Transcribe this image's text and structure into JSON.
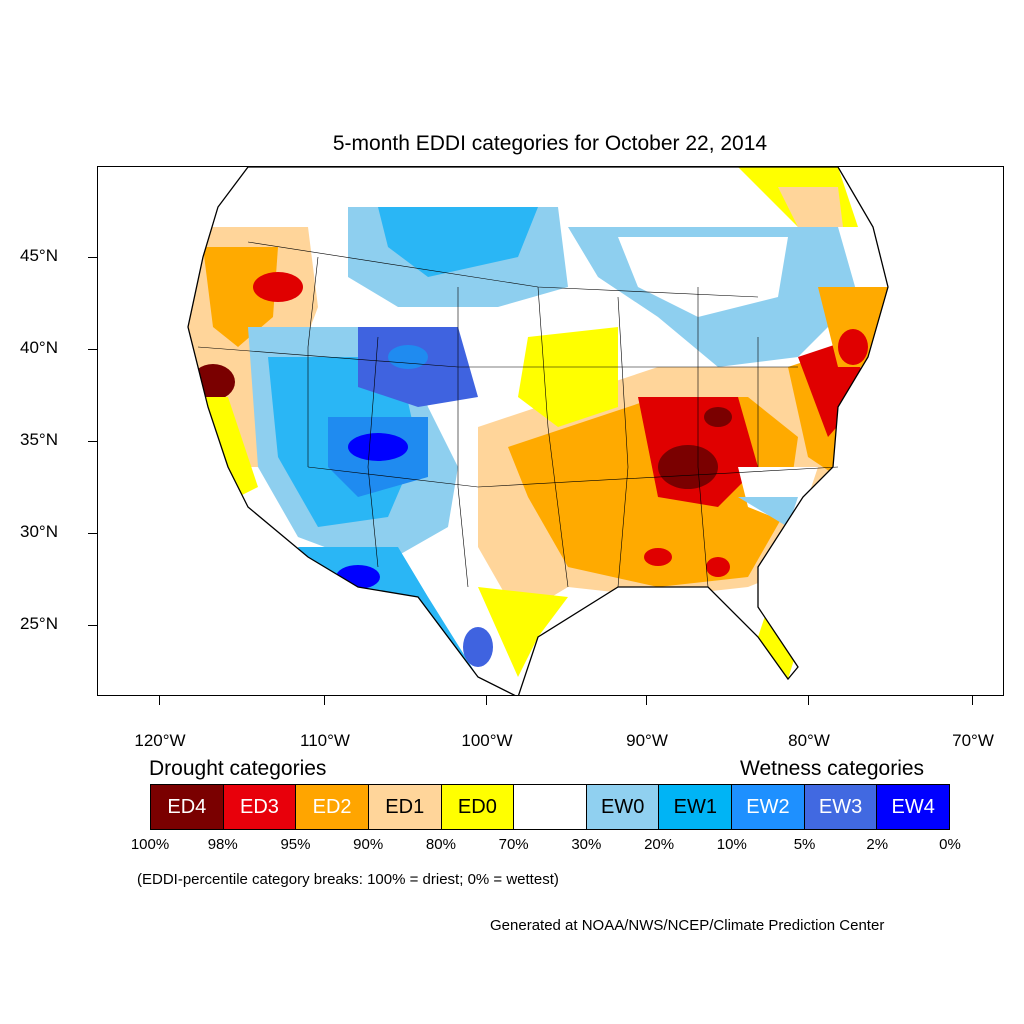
{
  "title": "5-month EDDI categories for October 22, 2014",
  "map": {
    "latitude_labels": [
      "45°N",
      "40°N",
      "35°N",
      "30°N",
      "25°N"
    ],
    "longitude_labels": [
      "120°W",
      "110°W",
      "100°W",
      "90°W",
      "80°W",
      "70°W"
    ],
    "colors": {
      "ED4": "#7a0000",
      "ED3": "#e00000",
      "ED2": "#ffaa00",
      "ED1": "#ffd28c",
      "ED0": "#ffff00",
      "none": "#ffffff",
      "EW0": "#8ecfef",
      "EW1": "#2ab6f5",
      "EW2": "#1f8bf0",
      "EW3": "#3f63e0",
      "EW4": "#0000ff"
    }
  },
  "legend": {
    "drought_heading": "Drought categories",
    "wetness_heading": "Wetness categories",
    "categories": [
      {
        "label": "ED4",
        "color": "#7a0000",
        "text_color": "#ffffff"
      },
      {
        "label": "ED3",
        "color": "#e8000b",
        "text_color": "#ffffff"
      },
      {
        "label": "ED2",
        "color": "#ffa500",
        "text_color": "#ffffff"
      },
      {
        "label": "ED1",
        "color": "#ffd59a",
        "text_color": "#000000"
      },
      {
        "label": "ED0",
        "color": "#ffff00",
        "text_color": "#000000"
      },
      {
        "label": "",
        "color": "#ffffff",
        "text_color": "#000000"
      },
      {
        "label": "EW0",
        "color": "#90d0f0",
        "text_color": "#000000"
      },
      {
        "label": "EW1",
        "color": "#00b4f5",
        "text_color": "#000000"
      },
      {
        "label": "EW2",
        "color": "#1e90ff",
        "text_color": "#ffffff"
      },
      {
        "label": "EW3",
        "color": "#4169e1",
        "text_color": "#ffffff"
      },
      {
        "label": "EW4",
        "color": "#0000ff",
        "text_color": "#ffffff"
      }
    ],
    "breaks": [
      "100%",
      "98%",
      "95%",
      "90%",
      "80%",
      "70%",
      "30%",
      "20%",
      "10%",
      "5%",
      "2%",
      "0%"
    ]
  },
  "note": "(EDDI-percentile category breaks: 100% = driest; 0% = wettest)",
  "credit": "Generated at NOAA/NWS/NCEP/Climate Prediction Center"
}
